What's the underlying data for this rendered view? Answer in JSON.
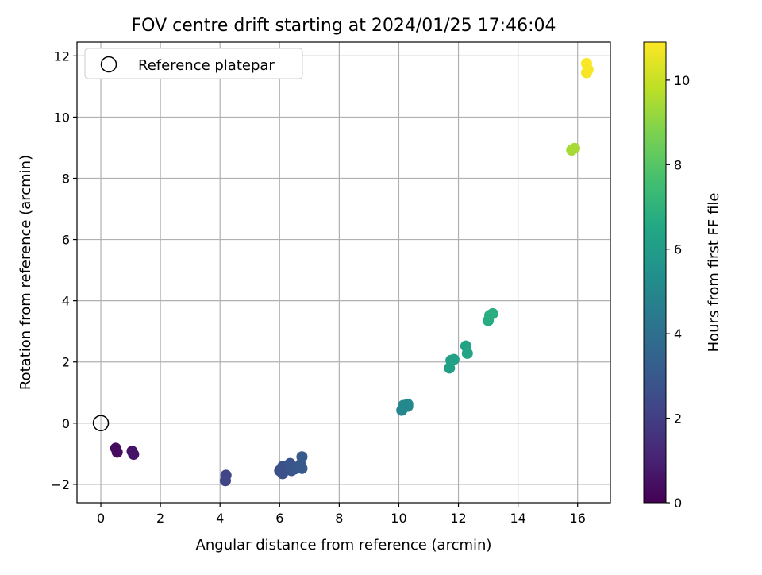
{
  "chart_data": {
    "type": "scatter",
    "title": "FOV centre drift starting at 2024/01/25 17:46:04",
    "xlabel": "Angular distance from reference (arcmin)",
    "ylabel": "Rotation from reference (arcmin)",
    "xlim": [
      -0.8,
      17.1
    ],
    "ylim": [
      -2.6,
      12.45
    ],
    "xticks": [
      0,
      2,
      4,
      6,
      8,
      10,
      12,
      14,
      16
    ],
    "yticks": [
      -2,
      0,
      2,
      4,
      6,
      8,
      10,
      12
    ],
    "grid": true,
    "legend": {
      "position": "top-left",
      "entries": [
        "Reference platepar"
      ]
    },
    "reference_point": {
      "label": "Reference platepar",
      "x": 0,
      "y": 0
    },
    "colorbar": {
      "label": "Hours from first FF file",
      "min": 0,
      "max": 10.9,
      "ticks": [
        0,
        2,
        4,
        6,
        8,
        10
      ],
      "colormap": "viridis"
    },
    "points": [
      {
        "x": 0.5,
        "y": -0.82,
        "c": 0.3
      },
      {
        "x": 0.55,
        "y": -0.95,
        "c": 0.35
      },
      {
        "x": 1.05,
        "y": -0.92,
        "c": 0.55
      },
      {
        "x": 1.1,
        "y": -1.02,
        "c": 0.6
      },
      {
        "x": 4.2,
        "y": -1.7,
        "c": 2.2
      },
      {
        "x": 4.18,
        "y": -1.88,
        "c": 2.25
      },
      {
        "x": 6.0,
        "y": -1.55,
        "c": 2.6
      },
      {
        "x": 6.1,
        "y": -1.42,
        "c": 2.7
      },
      {
        "x": 6.1,
        "y": -1.65,
        "c": 2.7
      },
      {
        "x": 6.35,
        "y": -1.32,
        "c": 2.85
      },
      {
        "x": 6.4,
        "y": -1.55,
        "c": 2.9
      },
      {
        "x": 6.5,
        "y": -1.5,
        "c": 2.95
      },
      {
        "x": 6.75,
        "y": -1.1,
        "c": 3.1
      },
      {
        "x": 6.75,
        "y": -1.48,
        "c": 3.1
      },
      {
        "x": 6.7,
        "y": -1.35,
        "c": 3.05
      },
      {
        "x": 10.1,
        "y": 0.42,
        "c": 5.0
      },
      {
        "x": 10.15,
        "y": 0.58,
        "c": 5.05
      },
      {
        "x": 10.3,
        "y": 0.55,
        "c": 5.1
      },
      {
        "x": 10.3,
        "y": 0.62,
        "c": 5.1
      },
      {
        "x": 11.7,
        "y": 1.8,
        "c": 6.1
      },
      {
        "x": 11.75,
        "y": 2.05,
        "c": 6.15
      },
      {
        "x": 11.85,
        "y": 2.08,
        "c": 6.2
      },
      {
        "x": 12.25,
        "y": 2.52,
        "c": 6.3
      },
      {
        "x": 12.3,
        "y": 2.28,
        "c": 6.35
      },
      {
        "x": 13.0,
        "y": 3.35,
        "c": 6.7
      },
      {
        "x": 13.05,
        "y": 3.52,
        "c": 6.75
      },
      {
        "x": 13.15,
        "y": 3.58,
        "c": 6.8
      },
      {
        "x": 15.8,
        "y": 8.92,
        "c": 9.4
      },
      {
        "x": 15.9,
        "y": 8.98,
        "c": 9.45
      },
      {
        "x": 16.3,
        "y": 11.75,
        "c": 10.85
      },
      {
        "x": 16.3,
        "y": 11.45,
        "c": 10.8
      },
      {
        "x": 16.35,
        "y": 11.55,
        "c": 10.8
      }
    ]
  }
}
